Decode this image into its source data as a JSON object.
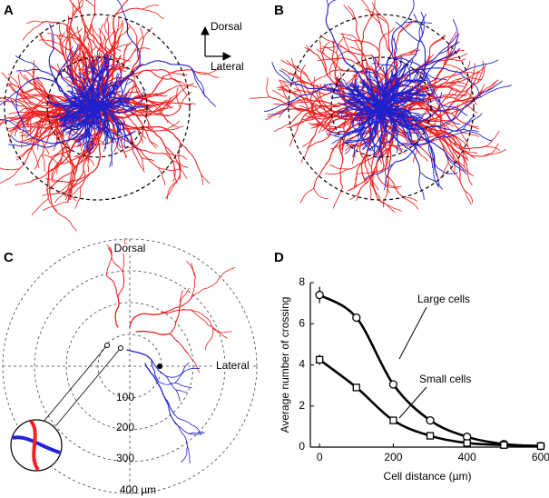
{
  "panels": [
    {
      "label": "A",
      "compass": {
        "up": "Dorsal",
        "right": "Lateral"
      }
    },
    {
      "label": "B"
    },
    {
      "label": "C",
      "axis_labels": {
        "up": "Dorsal",
        "right": "Lateral"
      },
      "rings": [
        "100",
        "200",
        "300",
        "400 µm"
      ]
    },
    {
      "label": "D"
    }
  ],
  "chart_data": {
    "type": "line",
    "xlabel": "Cell distance (µm)",
    "ylabel": "Average number of crossing",
    "x": [
      0,
      100,
      200,
      300,
      400,
      500,
      600
    ],
    "xlim": [
      -25,
      610
    ],
    "xticks": [
      0,
      200,
      400,
      600
    ],
    "ylim": [
      0,
      8
    ],
    "yticks": [
      0,
      2,
      4,
      6,
      8
    ],
    "series": [
      {
        "name": "Large cells",
        "color": "#000000",
        "marker": "circle",
        "values": [
          7.4,
          6.3,
          3.05,
          1.3,
          0.5,
          0.15,
          0.05
        ],
        "errors": [
          0.4,
          0.2,
          0.1,
          0.1,
          0.1,
          0.05,
          0.05
        ]
      },
      {
        "name": "Small cells",
        "color": "#000000",
        "marker": "square",
        "values": [
          4.25,
          2.9,
          1.3,
          0.55,
          0.2,
          0.1,
          0.05
        ],
        "errors": [
          0.25,
          0.1,
          0.1,
          0.05,
          0.05,
          0.05,
          0.05
        ]
      }
    ]
  }
}
